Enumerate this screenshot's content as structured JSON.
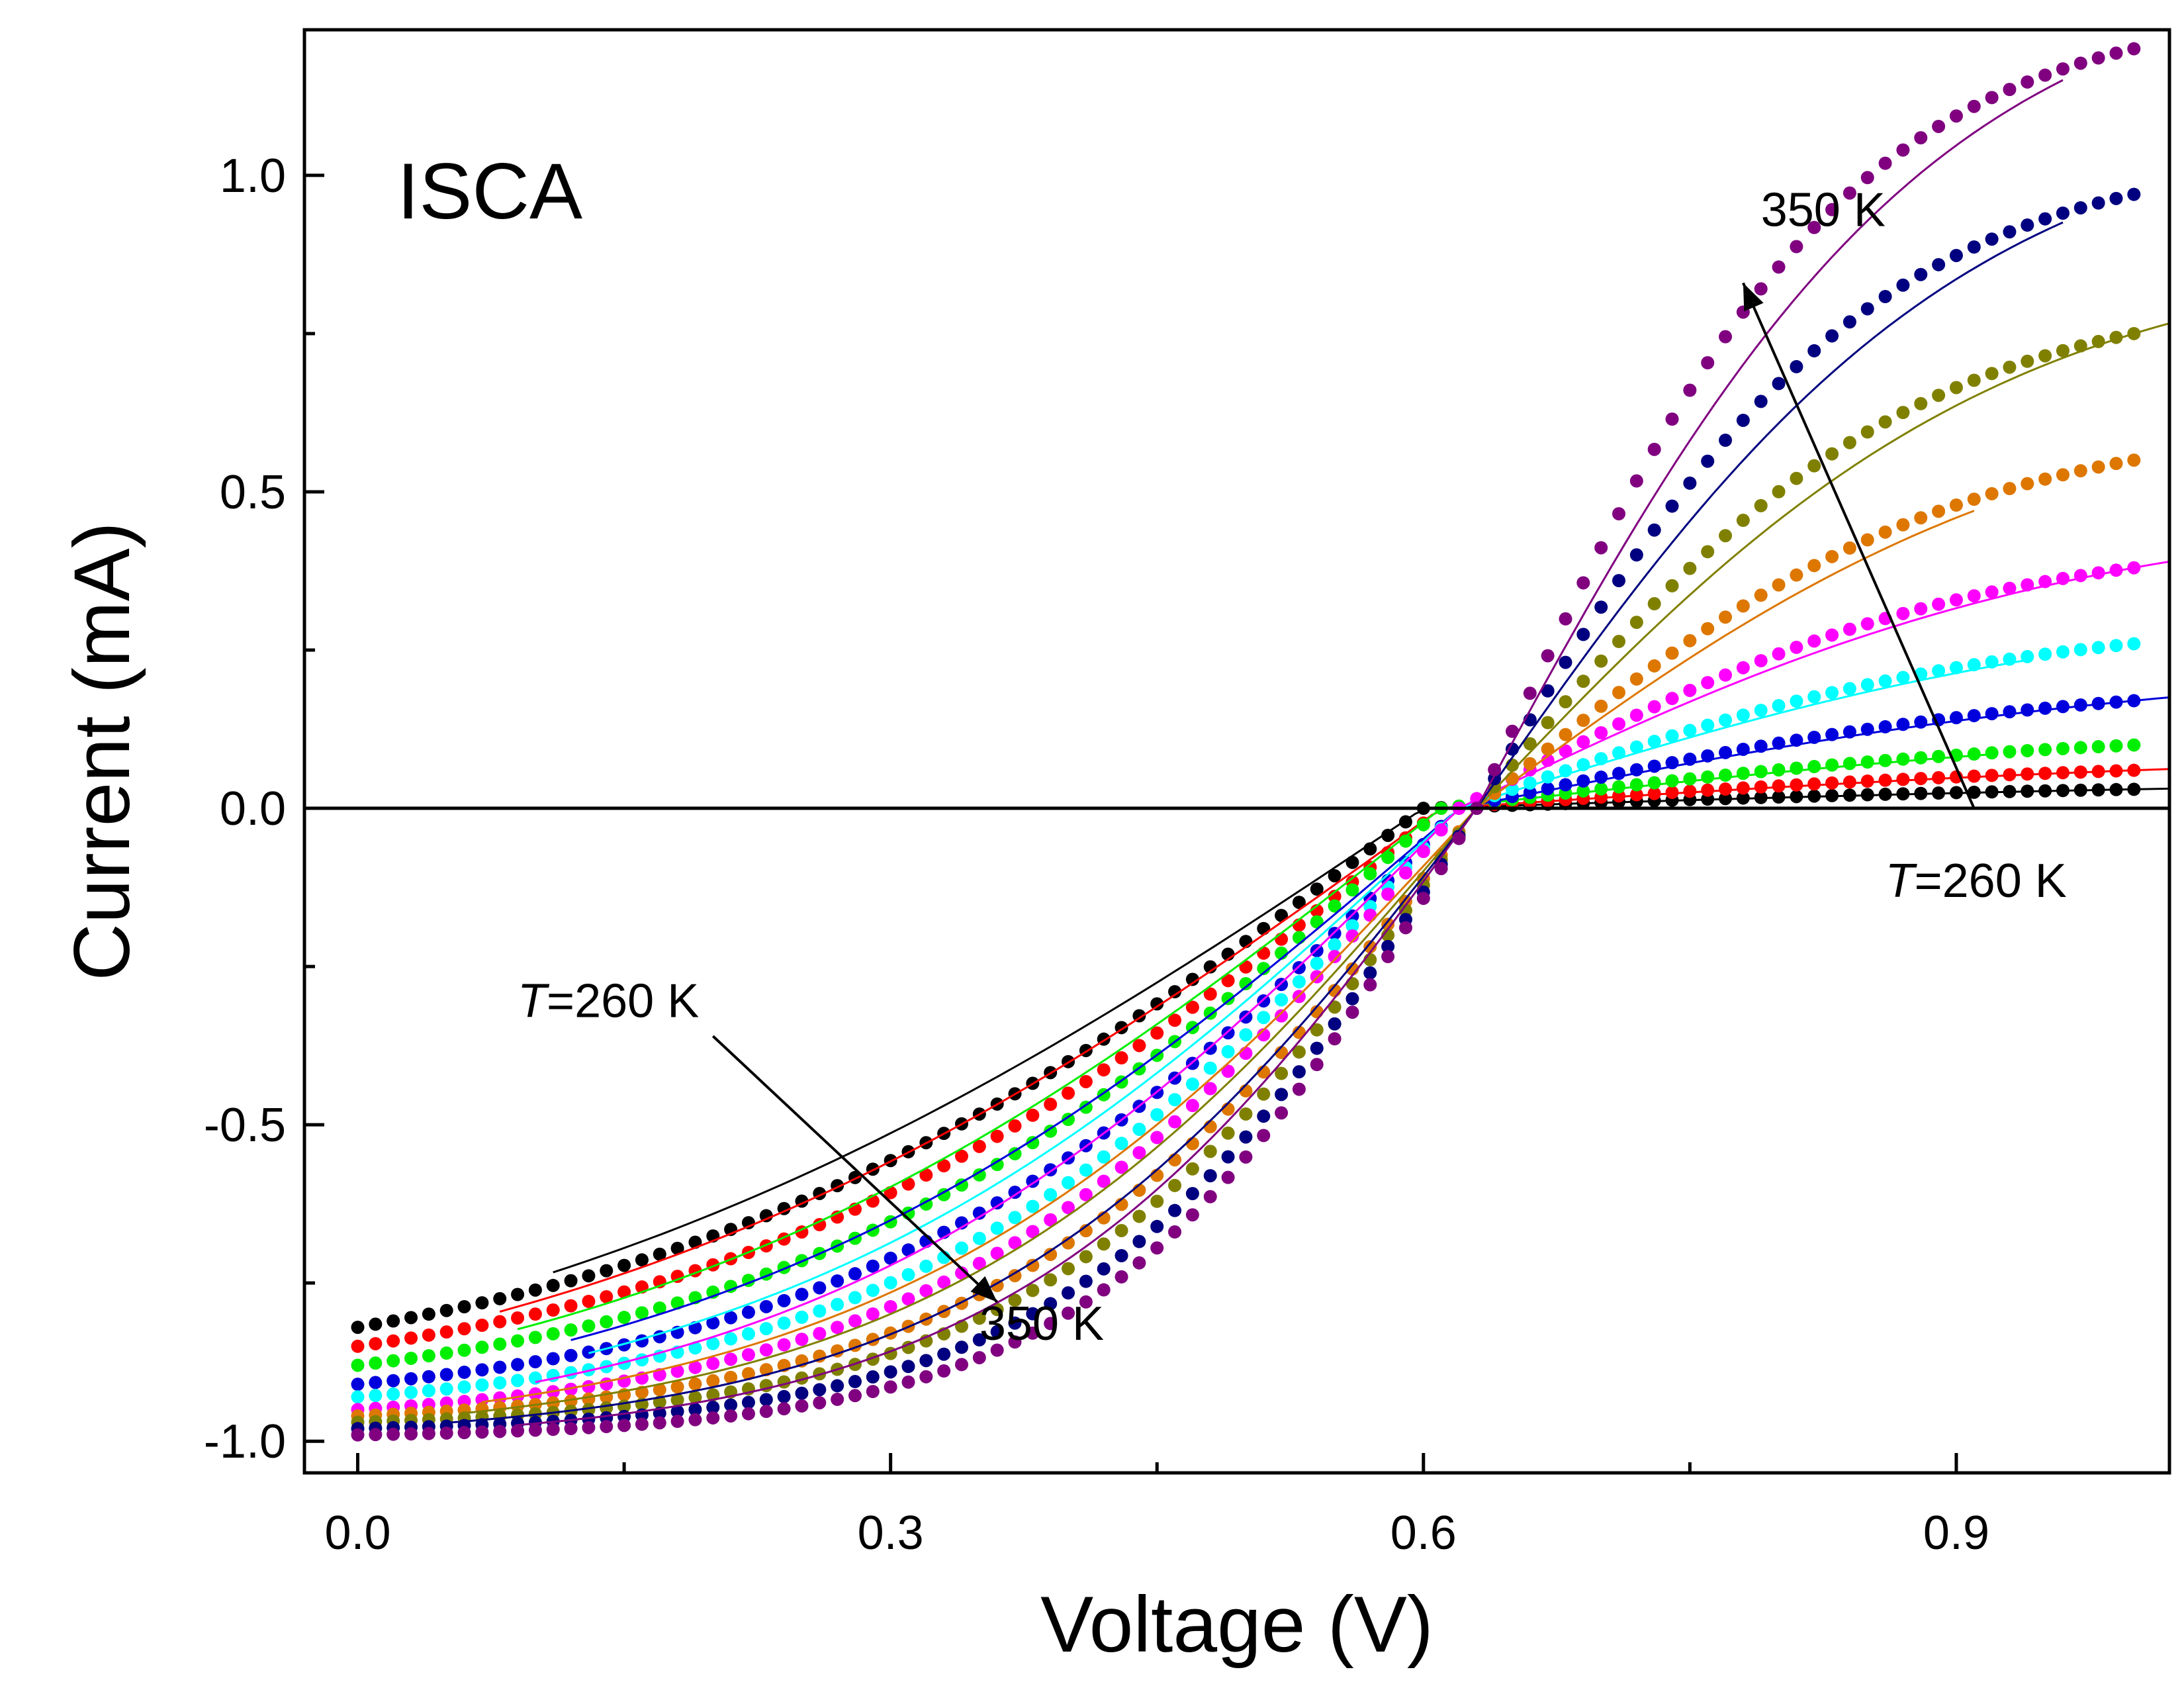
{
  "chart_data": {
    "type": "scatter",
    "title": "",
    "panel_label": "ISCA",
    "xlabel": "Voltage (V)",
    "ylabel": "Current (mA)",
    "xlim": [
      -0.03,
      1.02
    ],
    "ylim": [
      -1.05,
      1.23
    ],
    "xticks": [
      0.0,
      0.3,
      0.6,
      0.9
    ],
    "xtick_labels": [
      "0.0",
      "0.3",
      "0.6",
      "0.9"
    ],
    "yticks": [
      -1.0,
      -0.5,
      0.0,
      0.5,
      1.0
    ],
    "ytick_labels": [
      "-1.0",
      "-0.5",
      "0.0",
      "0.5",
      "1.0"
    ],
    "grid": false,
    "legend": "none",
    "annotations": [
      {
        "text": "350 K",
        "italic_prefix": "",
        "at": [
          0.79,
          0.92
        ]
      },
      {
        "text": "=260 K",
        "italic_prefix": "T",
        "at": [
          0.86,
          -0.14
        ]
      },
      {
        "text": "=260 K",
        "italic_prefix": "T",
        "at": [
          0.09,
          -0.33
        ]
      },
      {
        "text": "350 K",
        "italic_prefix": "",
        "at": [
          0.35,
          -0.84
        ]
      }
    ],
    "arrows": [
      {
        "from": [
          0.91,
          0.0
        ],
        "to": [
          0.78,
          0.83
        ]
      },
      {
        "from": [
          0.2,
          -0.36
        ],
        "to": [
          0.36,
          -0.78
        ]
      }
    ],
    "series": [
      {
        "color": "#000000",
        "isc": -0.82,
        "voc": 0.6,
        "imax": 0.03,
        "sharp": 4.6,
        "fit_from": 0.11,
        "fit_to": 1.02
      },
      {
        "color": "#ff0000",
        "isc": -0.85,
        "voc": 0.61,
        "imax": 0.06,
        "sharp": 5.0,
        "fit_from": 0.08,
        "fit_to": 1.02
      },
      {
        "color": "#00ee00",
        "isc": -0.88,
        "voc": 0.61,
        "imax": 0.1,
        "sharp": 5.5,
        "fit_from": 0.09,
        "fit_to": 0.92
      },
      {
        "color": "#0000dd",
        "isc": -0.91,
        "voc": 0.62,
        "imax": 0.17,
        "sharp": 6.0,
        "fit_from": 0.12,
        "fit_to": 1.02
      },
      {
        "color": "#00ffff",
        "isc": -0.93,
        "voc": 0.62,
        "imax": 0.26,
        "sharp": 6.5,
        "fit_from": 0.13,
        "fit_to": 0.94
      },
      {
        "color": "#ff00ff",
        "isc": -0.95,
        "voc": 0.62,
        "imax": 0.38,
        "sharp": 7.0,
        "fit_from": 0.1,
        "fit_to": 1.02
      },
      {
        "color": "#dd7700",
        "isc": -0.96,
        "voc": 0.63,
        "imax": 0.55,
        "sharp": 7.6,
        "fit_from": 0.07,
        "fit_to": 0.91
      },
      {
        "color": "#808000",
        "isc": -0.97,
        "voc": 0.63,
        "imax": 0.75,
        "sharp": 8.3,
        "fit_from": 0.06,
        "fit_to": 1.02
      },
      {
        "color": "#000080",
        "isc": -0.98,
        "voc": 0.63,
        "imax": 0.97,
        "sharp": 9.0,
        "fit_from": 0.05,
        "fit_to": 0.96
      },
      {
        "color": "#800080",
        "isc": -0.99,
        "voc": 0.63,
        "imax": 1.2,
        "sharp": 9.6,
        "fit_from": 0.09,
        "fit_to": 0.96
      }
    ]
  }
}
